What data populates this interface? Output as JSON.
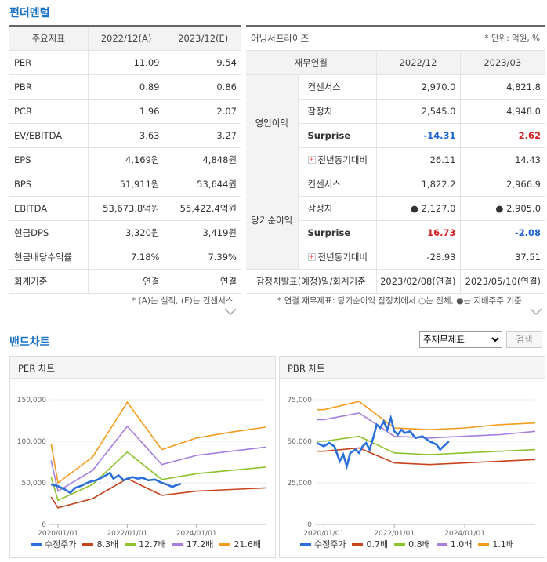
{
  "fundamentals": {
    "title": "펀더멘털",
    "headers": [
      "주요지표",
      "2022/12(A)",
      "2023/12(E)"
    ],
    "rows": [
      {
        "label": "PER",
        "a": "11.09",
        "e": "9.54"
      },
      {
        "label": "PBR",
        "a": "0.89",
        "e": "0.86"
      },
      {
        "label": "PCR",
        "a": "1.96",
        "e": "2.07"
      },
      {
        "label": "EV/EBITDA",
        "a": "3.63",
        "e": "3.27"
      },
      {
        "label": "EPS",
        "a": "4,169원",
        "e": "4,848원"
      },
      {
        "label": "BPS",
        "a": "51,911원",
        "e": "53,644원"
      },
      {
        "label": "EBITDA",
        "a": "53,673.8억원",
        "e": "55,422.4억원"
      },
      {
        "label": "현금DPS",
        "a": "3,320원",
        "e": "3,419원"
      },
      {
        "label": "현금배당수익률",
        "a": "7.18%",
        "e": "7.39%"
      },
      {
        "label": "회계기준",
        "a": "연결",
        "e": "연결"
      }
    ],
    "note": "* (A)는 실적, (E)는 컨센서스"
  },
  "earnings": {
    "title": "어닝서프라이즈",
    "unit": "* 단위: 억원, %",
    "headers": [
      "재무연월",
      "2022/12",
      "2023/03"
    ],
    "groups": [
      {
        "name": "영업이익",
        "rows": [
          {
            "label": "컨센서스",
            "v1": "2,970.0",
            "v2": "4,821.8"
          },
          {
            "label": "잠정치",
            "v1": "2,545.0",
            "v2": "4,948.0"
          },
          {
            "label": "Surprise",
            "v1": "-14.31",
            "v2": "2.62"
          },
          {
            "label": "전년동기대비",
            "v1": "26.11",
            "v2": "14.43"
          }
        ]
      },
      {
        "name": "당기순이익",
        "rows": [
          {
            "label": "컨센서스",
            "v1": "1,822.2",
            "v2": "2,966.9"
          },
          {
            "label": "잠정치",
            "v1": "● 2,127.0",
            "v2": "● 2,905.0"
          },
          {
            "label": "Surprise",
            "v1": "16.73",
            "v2": "-2.08"
          },
          {
            "label": "전년동기대비",
            "v1": "-28.93",
            "v2": "37.51"
          }
        ]
      }
    ],
    "footer_label": "잠정치발표(예정)일/회계기준",
    "footer_v1": "2023/02/08(연결)",
    "footer_v2": "2023/05/10(연결)",
    "note": "* 연결 재무제표: 당기순이익 잠정치에서 ○는 전체, ●는 지배주주 기준"
  },
  "band": {
    "title": "밴드차트",
    "select_value": "주재무제표",
    "search_label": "검색"
  },
  "chart_data": [
    {
      "type": "line",
      "title": "PER 차트",
      "y_ticks": [
        "150,000",
        "100,000",
        "50,000",
        "0"
      ],
      "x_ticks": [
        "2020/01/01",
        "2022/01/01",
        "2024/01/01"
      ],
      "ylim": [
        0,
        150000
      ],
      "xlim": [
        2019.75,
        2026.0
      ],
      "series": [
        {
          "name": "수정주가",
          "color": "#2b6fdc",
          "points": [
            [
              2019.8,
              48000
            ],
            [
              2020.0,
              46000
            ],
            [
              2020.2,
              42000
            ],
            [
              2020.35,
              38000
            ],
            [
              2020.5,
              44000
            ],
            [
              2020.7,
              47000
            ],
            [
              2020.9,
              51000
            ],
            [
              2021.1,
              53000
            ],
            [
              2021.3,
              57000
            ],
            [
              2021.5,
              62000
            ],
            [
              2021.6,
              55000
            ],
            [
              2021.75,
              59000
            ],
            [
              2021.9,
              53000
            ],
            [
              2022.0,
              55000
            ],
            [
              2022.15,
              57000
            ],
            [
              2022.3,
              55000
            ],
            [
              2022.45,
              56000
            ],
            [
              2022.6,
              53000
            ],
            [
              2022.8,
              54000
            ],
            [
              2023.0,
              50000
            ],
            [
              2023.15,
              48000
            ],
            [
              2023.3,
              45000
            ],
            [
              2023.4,
              47000
            ],
            [
              2023.55,
              49000
            ]
          ]
        },
        {
          "name": "8.3배",
          "color": "#c8441d",
          "points": [
            [
              2019.8,
              33000
            ],
            [
              2020.0,
              20000
            ],
            [
              2021.0,
              31000
            ],
            [
              2022.0,
              55000
            ],
            [
              2023.0,
              35000
            ],
            [
              2024.0,
              40000
            ],
            [
              2025.0,
              42000
            ],
            [
              2026.0,
              44000
            ]
          ]
        },
        {
          "name": "12.7배",
          "color": "#8cc22a",
          "points": [
            [
              2019.8,
              57000
            ],
            [
              2020.0,
              29000
            ],
            [
              2021.0,
              48000
            ],
            [
              2022.0,
              87000
            ],
            [
              2023.0,
              54000
            ],
            [
              2024.0,
              61000
            ],
            [
              2025.0,
              65000
            ],
            [
              2026.0,
              69000
            ]
          ]
        },
        {
          "name": "17.2배",
          "color": "#a77ee0",
          "points": [
            [
              2019.8,
              77000
            ],
            [
              2020.0,
              40000
            ],
            [
              2021.0,
              65000
            ],
            [
              2022.0,
              118000
            ],
            [
              2023.0,
              72000
            ],
            [
              2024.0,
              83000
            ],
            [
              2025.0,
              88000
            ],
            [
              2026.0,
              93000
            ]
          ]
        },
        {
          "name": "21.6배",
          "color": "#f59a1b",
          "points": [
            [
              2019.8,
              97000
            ],
            [
              2020.0,
              50000
            ],
            [
              2021.0,
              81000
            ],
            [
              2022.0,
              147000
            ],
            [
              2023.0,
              90000
            ],
            [
              2024.0,
              104000
            ],
            [
              2025.0,
              111000
            ],
            [
              2026.0,
              117000
            ]
          ]
        }
      ]
    },
    {
      "type": "line",
      "title": "PBR 차트",
      "y_ticks": [
        "75,000",
        "50,000",
        "25,000",
        "0"
      ],
      "x_ticks": [
        "2020/01/01",
        "2022/01/01",
        "2024/01/01"
      ],
      "ylim": [
        0,
        75000
      ],
      "xlim": [
        2019.75,
        2026.0
      ],
      "series": [
        {
          "name": "수정주가",
          "color": "#2b6fdc",
          "points": [
            [
              2019.8,
              49000
            ],
            [
              2020.0,
              47000
            ],
            [
              2020.15,
              49000
            ],
            [
              2020.3,
              47000
            ],
            [
              2020.45,
              38000
            ],
            [
              2020.55,
              42000
            ],
            [
              2020.65,
              35000
            ],
            [
              2020.75,
              43000
            ],
            [
              2020.9,
              45000
            ],
            [
              2021.0,
              43000
            ],
            [
              2021.1,
              47000
            ],
            [
              2021.2,
              49000
            ],
            [
              2021.3,
              45000
            ],
            [
              2021.4,
              52000
            ],
            [
              2021.5,
              60000
            ],
            [
              2021.6,
              58000
            ],
            [
              2021.7,
              62000
            ],
            [
              2021.8,
              57000
            ],
            [
              2021.9,
              64000
            ],
            [
              2022.0,
              56000
            ],
            [
              2022.1,
              54000
            ],
            [
              2022.2,
              57000
            ],
            [
              2022.3,
              55000
            ],
            [
              2022.45,
              56000
            ],
            [
              2022.6,
              52000
            ],
            [
              2022.8,
              53000
            ],
            [
              2023.0,
              50000
            ],
            [
              2023.2,
              48000
            ],
            [
              2023.3,
              45000
            ],
            [
              2023.45,
              48000
            ],
            [
              2023.55,
              50000
            ]
          ]
        },
        {
          "name": "0.7배",
          "color": "#c8441d",
          "points": [
            [
              2019.8,
              44000
            ],
            [
              2020.0,
              44000
            ],
            [
              2021.0,
              46000
            ],
            [
              2022.0,
              37000
            ],
            [
              2023.0,
              36000
            ],
            [
              2024.0,
              37000
            ],
            [
              2025.0,
              38000
            ],
            [
              2026.0,
              39000
            ]
          ]
        },
        {
          "name": "0.8배",
          "color": "#8cc22a",
          "points": [
            [
              2019.8,
              50000
            ],
            [
              2020.0,
              50000
            ],
            [
              2021.0,
              53000
            ],
            [
              2022.0,
              43000
            ],
            [
              2023.0,
              42000
            ],
            [
              2024.0,
              43000
            ],
            [
              2025.0,
              44000
            ],
            [
              2026.0,
              45000
            ]
          ]
        },
        {
          "name": "1.0배",
          "color": "#a77ee0",
          "points": [
            [
              2019.8,
              63000
            ],
            [
              2020.0,
              63000
            ],
            [
              2021.0,
              67000
            ],
            [
              2022.0,
              53000
            ],
            [
              2023.0,
              52000
            ],
            [
              2024.0,
              53000
            ],
            [
              2025.0,
              54000
            ],
            [
              2026.0,
              56000
            ]
          ]
        },
        {
          "name": "1.1배",
          "color": "#f59a1b",
          "points": [
            [
              2019.8,
              69000
            ],
            [
              2020.0,
              69000
            ],
            [
              2021.0,
              74000
            ],
            [
              2022.0,
              58000
            ],
            [
              2023.0,
              57000
            ],
            [
              2024.0,
              58000
            ],
            [
              2025.0,
              60000
            ],
            [
              2026.0,
              61000
            ]
          ]
        }
      ]
    }
  ]
}
